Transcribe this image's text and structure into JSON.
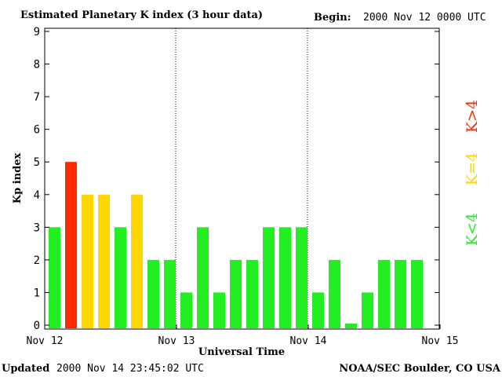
{
  "header": {
    "title": "Estimated Planetary K index (3 hour data)",
    "begin_label": "Begin:",
    "begin_value": "2000 Nov 12 0000 UTC"
  },
  "footer": {
    "updated_label": "Updated",
    "updated_value": "2000 Nov 14 23:45:02 UTC",
    "credit": "NOAA/SEC Boulder, CO USA"
  },
  "legend": {
    "high": "K>4",
    "mid": "K=4",
    "low": "K<4"
  },
  "colors": {
    "low": "#22ee22",
    "mid": "#ffd700",
    "high": "#ff2a00",
    "axis": "#000000"
  },
  "chart_data": {
    "type": "bar",
    "title": "Estimated Planetary K index (3 hour data)",
    "xlabel": "Universal Time",
    "ylabel": "Kp index",
    "ylim": [
      0,
      9
    ],
    "yticks": [
      "0",
      "1",
      "2",
      "3",
      "4",
      "5",
      "6",
      "7",
      "8",
      "9"
    ],
    "xticks": [
      "Nov 12",
      "Nov 13",
      "Nov 14",
      "Nov 15"
    ],
    "bins_per_day": 8,
    "day_dividers": "dotted",
    "values": [
      3,
      5,
      4,
      4,
      3,
      4,
      2,
      2,
      1,
      3,
      1,
      2,
      2,
      3,
      3,
      3,
      1,
      2,
      0.05,
      1,
      2,
      2,
      2
    ]
  }
}
